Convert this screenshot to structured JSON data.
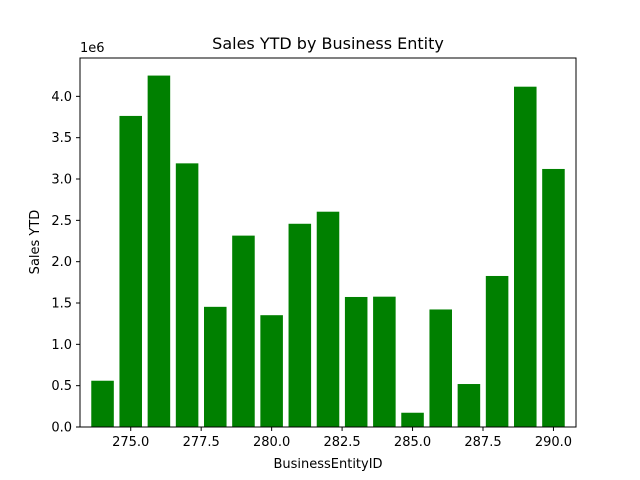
{
  "chart_data": {
    "type": "bar",
    "title": "Sales YTD by Business Entity",
    "xlabel": "BusinessEntityID",
    "ylabel": "Sales YTD",
    "y_offset_label": "1e6",
    "x": [
      274,
      275,
      276,
      277,
      278,
      279,
      280,
      281,
      282,
      283,
      284,
      285,
      286,
      287,
      288,
      289,
      290
    ],
    "values": [
      559698,
      3763178,
      4251369,
      3189418,
      1453719,
      2315186,
      1352577,
      2458536,
      2604541,
      1573013,
      1576562,
      172524,
      1421811,
      519906,
      1827067,
      4116871,
      3121616
    ],
    "xlim": [
      273.2,
      290.8
    ],
    "ylim": [
      0,
      4463937
    ],
    "x_ticks": [
      275.0,
      277.5,
      280.0,
      282.5,
      285.0,
      287.5,
      290.0
    ],
    "x_tick_labels": [
      "275.0",
      "277.5",
      "280.0",
      "282.5",
      "285.0",
      "287.5",
      "290.0"
    ],
    "y_ticks": [
      0,
      500000,
      1000000,
      1500000,
      2000000,
      2500000,
      3000000,
      3500000,
      4000000
    ],
    "y_tick_labels": [
      "0.0",
      "0.5",
      "1.0",
      "1.5",
      "2.0",
      "2.5",
      "3.0",
      "3.5",
      "4.0"
    ],
    "bar_color": "#008000",
    "grid": false
  }
}
